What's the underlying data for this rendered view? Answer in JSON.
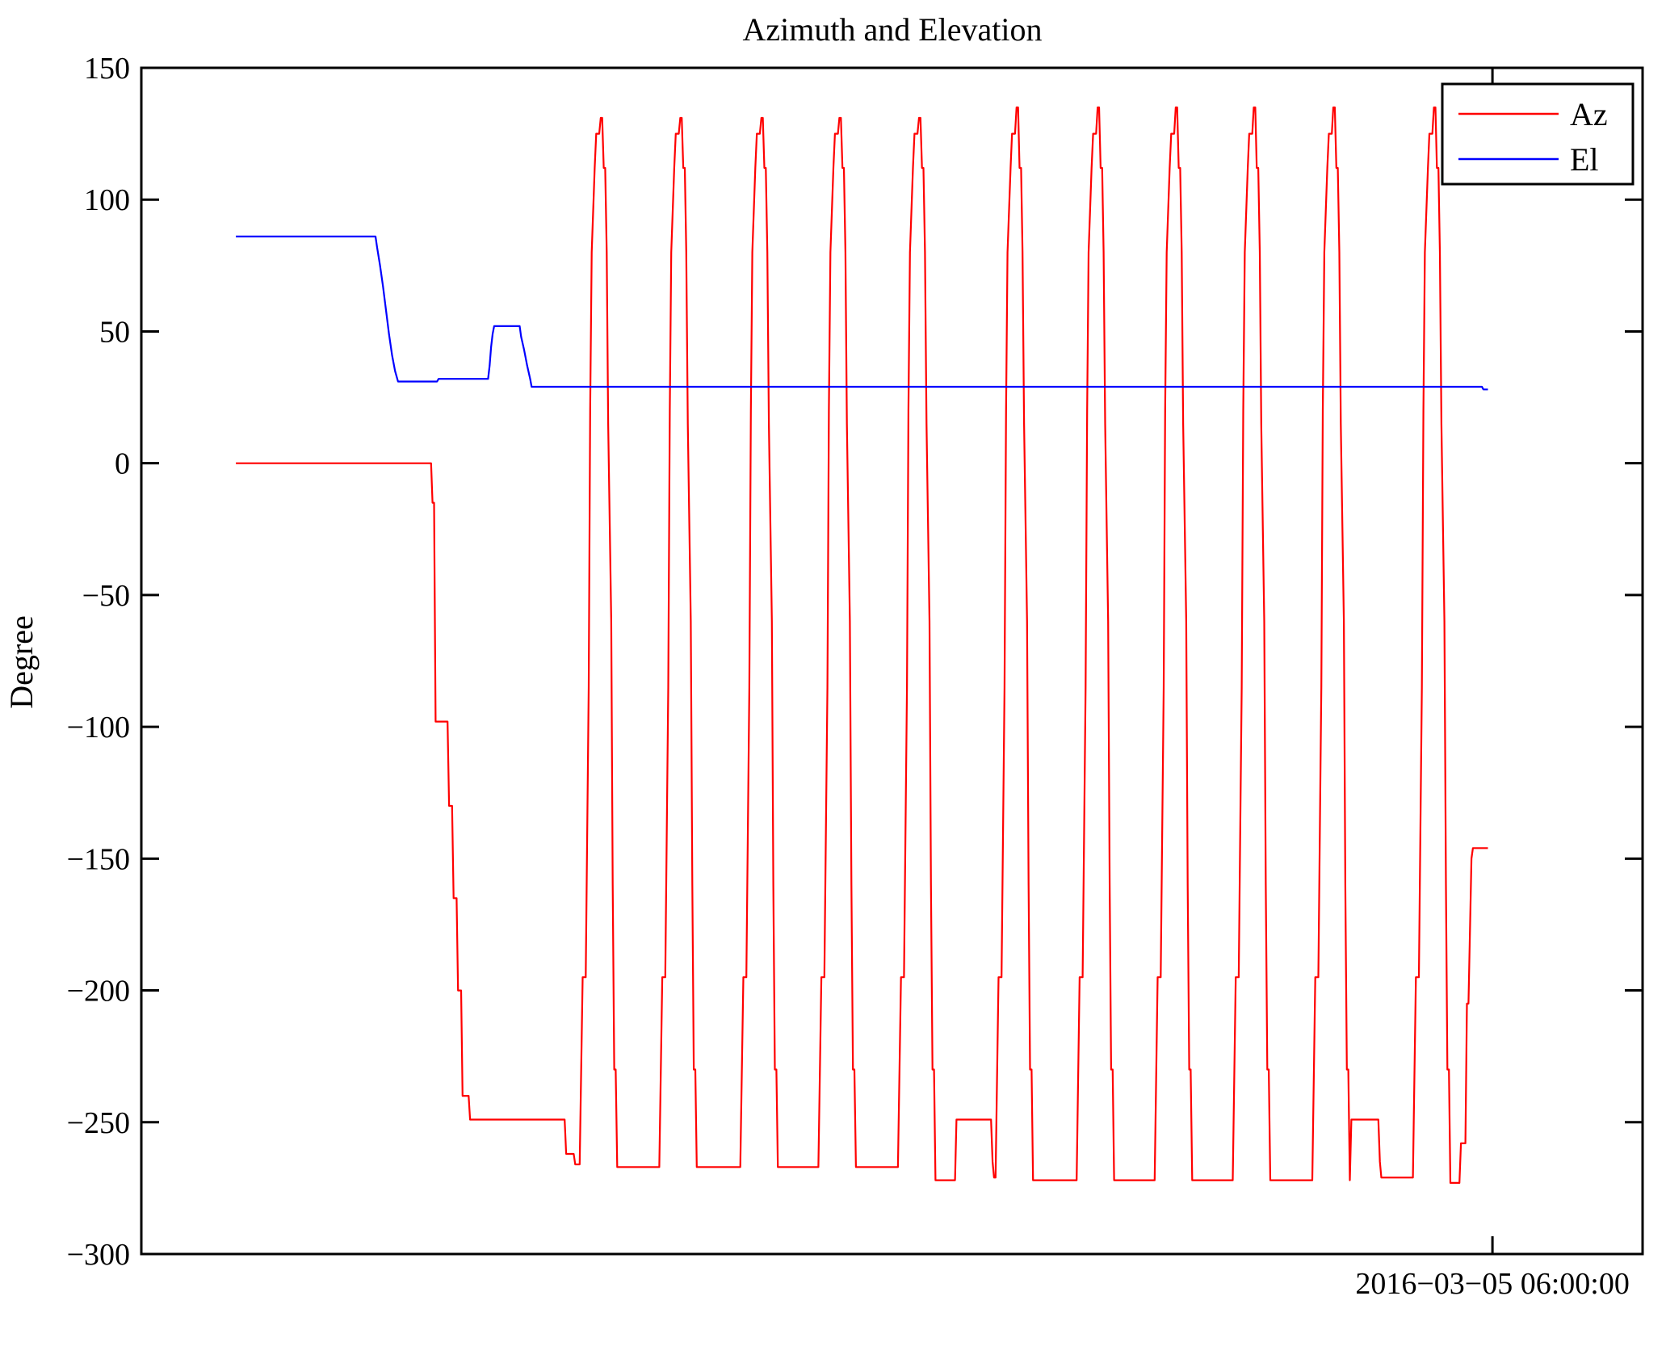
{
  "chart_data": {
    "type": "line",
    "title": "Azimuth and Elevation",
    "xlabel": "",
    "ylabel": "Degree",
    "ylim": [
      -300,
      150
    ],
    "y_ticks": [
      150,
      100,
      50,
      0,
      -50,
      -100,
      -150,
      -200,
      -250,
      -300
    ],
    "y_tick_labels": [
      "150",
      "100",
      "50",
      "0",
      "−50",
      "−100",
      "−150",
      "−200",
      "−250",
      "−300"
    ],
    "grid": false,
    "legend_position": "top-right",
    "x_axis": {
      "unit": "fraction of plot width × 1000 (single labeled time tick shown)",
      "range": [
        0,
        1000
      ],
      "ticks": [
        {
          "pos": 900,
          "label": "2016−03−05 06:00:00"
        }
      ]
    },
    "series": [
      {
        "name": "Az",
        "color": "#ff0000",
        "points": [
          [
            63,
            0
          ],
          [
            193,
            0
          ],
          [
            194,
            -15
          ],
          [
            195,
            -15
          ],
          [
            196,
            -98
          ],
          [
            204,
            -98
          ],
          [
            205,
            -130
          ],
          [
            207,
            -130
          ],
          [
            208,
            -165
          ],
          [
            210,
            -165
          ],
          [
            211,
            -200
          ],
          [
            213,
            -200
          ],
          [
            214,
            -240
          ],
          [
            218,
            -240
          ],
          [
            219,
            -249
          ],
          [
            282,
            -249
          ],
          [
            283,
            -262
          ],
          [
            288,
            -262
          ],
          [
            289,
            -266
          ],
          [
            292,
            -266
          ],
          [
            294,
            -195
          ],
          [
            296,
            -195
          ],
          [
            298,
            -85
          ],
          [
            299,
            20
          ],
          [
            300,
            80
          ],
          [
            302,
            112
          ],
          [
            303,
            125
          ],
          [
            305,
            125
          ],
          [
            306,
            131
          ],
          [
            307,
            131
          ],
          [
            308,
            112
          ],
          [
            309,
            112
          ],
          [
            310,
            80
          ],
          [
            311,
            15
          ],
          [
            313,
            -60
          ],
          [
            314,
            -160
          ],
          [
            315,
            -230
          ],
          [
            316,
            -230
          ],
          [
            317,
            -267
          ],
          [
            345,
            -267
          ],
          [
            347,
            -195
          ],
          [
            349,
            -195
          ],
          [
            351,
            -85
          ],
          [
            352,
            20
          ],
          [
            353,
            80
          ],
          [
            355,
            112
          ],
          [
            356,
            125
          ],
          [
            358,
            125
          ],
          [
            359,
            131
          ],
          [
            360,
            131
          ],
          [
            361,
            112
          ],
          [
            362,
            112
          ],
          [
            363,
            80
          ],
          [
            364,
            15
          ],
          [
            366,
            -60
          ],
          [
            367,
            -160
          ],
          [
            368,
            -230
          ],
          [
            369,
            -230
          ],
          [
            370,
            -267
          ],
          [
            399,
            -267
          ],
          [
            401,
            -195
          ],
          [
            403,
            -195
          ],
          [
            405,
            -85
          ],
          [
            406,
            20
          ],
          [
            407,
            80
          ],
          [
            409,
            112
          ],
          [
            410,
            125
          ],
          [
            412,
            125
          ],
          [
            413,
            131
          ],
          [
            414,
            131
          ],
          [
            415,
            112
          ],
          [
            416,
            112
          ],
          [
            417,
            80
          ],
          [
            418,
            15
          ],
          [
            420,
            -60
          ],
          [
            421,
            -160
          ],
          [
            422,
            -230
          ],
          [
            423,
            -230
          ],
          [
            424,
            -267
          ],
          [
            451,
            -267
          ],
          [
            453,
            -195
          ],
          [
            455,
            -195
          ],
          [
            457,
            -85
          ],
          [
            458,
            20
          ],
          [
            459,
            80
          ],
          [
            461,
            112
          ],
          [
            462,
            125
          ],
          [
            464,
            125
          ],
          [
            465,
            131
          ],
          [
            466,
            131
          ],
          [
            467,
            112
          ],
          [
            468,
            112
          ],
          [
            469,
            80
          ],
          [
            470,
            15
          ],
          [
            472,
            -60
          ],
          [
            473,
            -160
          ],
          [
            474,
            -230
          ],
          [
            475,
            -230
          ],
          [
            476,
            -267
          ],
          [
            504,
            -267
          ],
          [
            506,
            -195
          ],
          [
            508,
            -195
          ],
          [
            510,
            -85
          ],
          [
            511,
            20
          ],
          [
            512,
            80
          ],
          [
            514,
            112
          ],
          [
            515,
            125
          ],
          [
            517,
            125
          ],
          [
            518,
            131
          ],
          [
            519,
            131
          ],
          [
            520,
            112
          ],
          [
            521,
            112
          ],
          [
            522,
            80
          ],
          [
            523,
            15
          ],
          [
            525,
            -60
          ],
          [
            526,
            -160
          ],
          [
            527,
            -230
          ],
          [
            528,
            -230
          ],
          [
            529,
            -272
          ],
          [
            542,
            -272
          ],
          [
            543,
            -249
          ],
          [
            566,
            -249
          ],
          [
            567,
            -265
          ],
          [
            568,
            -271
          ],
          [
            569,
            -271
          ],
          [
            571,
            -195
          ],
          [
            573,
            -195
          ],
          [
            575,
            -85
          ],
          [
            576,
            20
          ],
          [
            577,
            80
          ],
          [
            579,
            112
          ],
          [
            580,
            125
          ],
          [
            582,
            125
          ],
          [
            583,
            135
          ],
          [
            584,
            135
          ],
          [
            585,
            112
          ],
          [
            586,
            112
          ],
          [
            587,
            80
          ],
          [
            588,
            15
          ],
          [
            590,
            -60
          ],
          [
            591,
            -160
          ],
          [
            592,
            -230
          ],
          [
            593,
            -230
          ],
          [
            594,
            -272
          ],
          [
            623,
            -272
          ],
          [
            625,
            -195
          ],
          [
            627,
            -195
          ],
          [
            629,
            -85
          ],
          [
            630,
            20
          ],
          [
            631,
            80
          ],
          [
            633,
            112
          ],
          [
            634,
            125
          ],
          [
            636,
            125
          ],
          [
            637,
            135
          ],
          [
            638,
            135
          ],
          [
            639,
            112
          ],
          [
            640,
            112
          ],
          [
            641,
            80
          ],
          [
            642,
            15
          ],
          [
            644,
            -60
          ],
          [
            645,
            -160
          ],
          [
            646,
            -230
          ],
          [
            647,
            -230
          ],
          [
            648,
            -272
          ],
          [
            675,
            -272
          ],
          [
            677,
            -195
          ],
          [
            679,
            -195
          ],
          [
            681,
            -85
          ],
          [
            682,
            20
          ],
          [
            683,
            80
          ],
          [
            685,
            112
          ],
          [
            686,
            125
          ],
          [
            688,
            125
          ],
          [
            689,
            135
          ],
          [
            690,
            135
          ],
          [
            691,
            112
          ],
          [
            692,
            112
          ],
          [
            693,
            80
          ],
          [
            694,
            15
          ],
          [
            696,
            -60
          ],
          [
            697,
            -160
          ],
          [
            698,
            -230
          ],
          [
            699,
            -230
          ],
          [
            700,
            -272
          ],
          [
            727,
            -272
          ],
          [
            729,
            -195
          ],
          [
            731,
            -195
          ],
          [
            733,
            -85
          ],
          [
            734,
            20
          ],
          [
            735,
            80
          ],
          [
            737,
            112
          ],
          [
            738,
            125
          ],
          [
            740,
            125
          ],
          [
            741,
            135
          ],
          [
            742,
            135
          ],
          [
            743,
            112
          ],
          [
            744,
            112
          ],
          [
            745,
            80
          ],
          [
            746,
            15
          ],
          [
            748,
            -60
          ],
          [
            749,
            -160
          ],
          [
            750,
            -230
          ],
          [
            751,
            -230
          ],
          [
            752,
            -272
          ],
          [
            780,
            -272
          ],
          [
            782,
            -195
          ],
          [
            784,
            -195
          ],
          [
            786,
            -85
          ],
          [
            787,
            20
          ],
          [
            788,
            80
          ],
          [
            790,
            112
          ],
          [
            791,
            125
          ],
          [
            793,
            125
          ],
          [
            794,
            135
          ],
          [
            795,
            135
          ],
          [
            796,
            112
          ],
          [
            797,
            112
          ],
          [
            798,
            80
          ],
          [
            799,
            15
          ],
          [
            801,
            -60
          ],
          [
            802,
            -160
          ],
          [
            803,
            -230
          ],
          [
            804,
            -230
          ],
          [
            805,
            -272
          ],
          [
            806,
            -249
          ],
          [
            824,
            -249
          ],
          [
            825,
            -265
          ],
          [
            826,
            -271
          ],
          [
            847,
            -271
          ],
          [
            849,
            -195
          ],
          [
            851,
            -195
          ],
          [
            853,
            -85
          ],
          [
            854,
            20
          ],
          [
            855,
            80
          ],
          [
            857,
            112
          ],
          [
            858,
            125
          ],
          [
            860,
            125
          ],
          [
            861,
            135
          ],
          [
            862,
            135
          ],
          [
            863,
            112
          ],
          [
            864,
            112
          ],
          [
            865,
            80
          ],
          [
            866,
            15
          ],
          [
            868,
            -60
          ],
          [
            869,
            -160
          ],
          [
            870,
            -230
          ],
          [
            871,
            -230
          ],
          [
            872,
            -273
          ],
          [
            878,
            -273
          ],
          [
            879,
            -258
          ],
          [
            882,
            -258
          ],
          [
            883,
            -205
          ],
          [
            884,
            -205
          ],
          [
            886,
            -150
          ],
          [
            887,
            -146
          ],
          [
            897,
            -146
          ]
        ]
      },
      {
        "name": "El",
        "color": "#0000ff",
        "points": [
          [
            63,
            86
          ],
          [
            156,
            86
          ],
          [
            157,
            82
          ],
          [
            159,
            75
          ],
          [
            161,
            67
          ],
          [
            163,
            58
          ],
          [
            165,
            49
          ],
          [
            167,
            41
          ],
          [
            169,
            35
          ],
          [
            171,
            31
          ],
          [
            197,
            31
          ],
          [
            198,
            32
          ],
          [
            231,
            32
          ],
          [
            232,
            37
          ],
          [
            233,
            44
          ],
          [
            234,
            49
          ],
          [
            235,
            52
          ],
          [
            252,
            52
          ],
          [
            253,
            48
          ],
          [
            255,
            43
          ],
          [
            257,
            37
          ],
          [
            259,
            32
          ],
          [
            260,
            29
          ],
          [
            893,
            29
          ],
          [
            894,
            28
          ],
          [
            897,
            28
          ]
        ]
      }
    ]
  }
}
